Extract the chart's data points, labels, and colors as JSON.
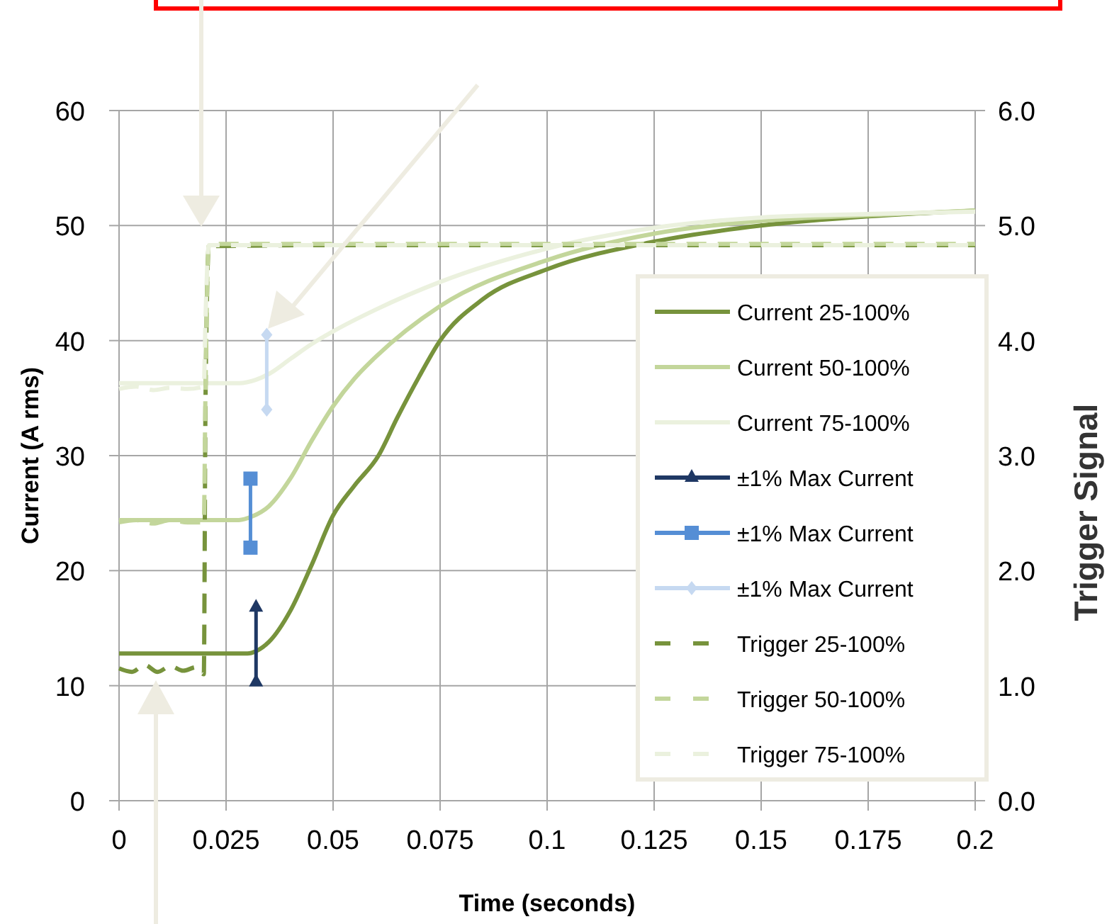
{
  "chart_data": {
    "type": "line",
    "xlabel": "Time (seconds)",
    "ylabel": "Current (A rms)",
    "y2label": "Trigger Signal",
    "xlim": [
      0,
      0.2
    ],
    "xticks": [
      0,
      0.025,
      0.05,
      0.075,
      0.1,
      0.125,
      0.15,
      0.175,
      0.2
    ],
    "ylim": [
      0,
      60
    ],
    "yticks": [
      0,
      10,
      20,
      30,
      40,
      50,
      60
    ],
    "y2lim": [
      0,
      6
    ],
    "y2ticks": [
      {
        "value": 0,
        "label": "0.0"
      },
      {
        "value": 1,
        "label": "1.0"
      },
      {
        "value": 2,
        "label": "2.0"
      },
      {
        "value": 3,
        "label": "3.0"
      },
      {
        "value": 4,
        "label": "4.0"
      },
      {
        "value": 5,
        "label": "5.0"
      },
      {
        "value": 6,
        "label": "6.0"
      }
    ],
    "grid": true,
    "legend": "bottom right",
    "series": [
      {
        "name": "Current 25-100%",
        "color": "#77933c",
        "line_style": "solid",
        "marker": "none",
        "x": [
          0,
          0.03,
          0.032,
          0.035,
          0.04,
          0.045,
          0.05,
          0.055,
          0.0606,
          0.065,
          0.07,
          0.075,
          0.085,
          0.1,
          0.125,
          0.15,
          0.175,
          0.2
        ],
        "values": [
          12.8,
          12.8,
          13,
          13.8,
          16.5,
          20.5,
          24.8,
          27.4,
          30,
          33.3,
          36.8,
          40,
          43.6,
          46.2,
          48.6,
          50,
          50.8,
          51.3
        ]
      },
      {
        "name": "Current 50-100%",
        "color": "#c3d69b",
        "line_style": "solid",
        "marker": "none",
        "x": [
          0,
          0.028,
          0.031,
          0.035,
          0.04,
          0.045,
          0.05,
          0.055,
          0.06,
          0.075,
          0.1,
          0.125,
          0.15,
          0.175,
          0.2
        ],
        "values": [
          24.4,
          24.4,
          24.7,
          25.6,
          28,
          31.3,
          34.3,
          36.7,
          38.6,
          43,
          47,
          49.3,
          50.4,
          50.9,
          51.3
        ]
      },
      {
        "name": "Current 75-100%",
        "color": "#ebf1de",
        "line_style": "solid",
        "marker": "none",
        "x": [
          0,
          0.028,
          0.032,
          0.035,
          0.04,
          0.045,
          0.05,
          0.06,
          0.075,
          0.1,
          0.125,
          0.15,
          0.175,
          0.2
        ],
        "values": [
          36.3,
          36.3,
          36.6,
          37.1,
          38.4,
          39.7,
          40.8,
          42.7,
          45.1,
          48,
          49.8,
          50.7,
          51,
          51.2
        ]
      },
      {
        "name": "±1% Max Current",
        "color": "#1f3864",
        "line_style": "solid",
        "marker": "triangle",
        "x": [
          0.032,
          0.032
        ],
        "values": [
          10.3,
          16.8
        ]
      },
      {
        "name": "±1% Max Current",
        "color": "#558ed5",
        "line_style": "solid",
        "marker": "square",
        "x": [
          0.0307,
          0.0307
        ],
        "values": [
          22,
          28
        ]
      },
      {
        "name": "±1% Max Current",
        "color": "#c6d9f1",
        "line_style": "solid",
        "marker": "diamond",
        "x": [
          0.0345,
          0.0345
        ],
        "values": [
          34,
          40.5
        ]
      },
      {
        "name": "Trigger 25-100%",
        "color": "#77933c",
        "line_style": "dashed",
        "marker": "none",
        "axis": "y2",
        "x": [
          0,
          0.003,
          0.006,
          0.009,
          0.012,
          0.015,
          0.018,
          0.0198,
          0.0202,
          0.021,
          0.05,
          0.1,
          0.15,
          0.2
        ],
        "values": [
          1.15,
          1.12,
          1.18,
          1.12,
          1.17,
          1.13,
          1.16,
          1.1,
          3.5,
          4.82,
          4.83,
          4.83,
          4.83,
          4.83
        ]
      },
      {
        "name": "Trigger 50-100%",
        "color": "#c3d69b",
        "line_style": "dashed",
        "marker": "none",
        "axis": "y2",
        "x": [
          0,
          0.004,
          0.008,
          0.012,
          0.016,
          0.0198,
          0.0202,
          0.021,
          0.05,
          0.1,
          0.15,
          0.2
        ],
        "values": [
          2.42,
          2.44,
          2.41,
          2.44,
          2.42,
          2.42,
          3.6,
          4.84,
          4.84,
          4.84,
          4.84,
          4.84
        ]
      },
      {
        "name": "Trigger 75-100%",
        "color": "#ebf1de",
        "line_style": "dashed",
        "marker": "none",
        "axis": "y2",
        "x": [
          0,
          0.004,
          0.008,
          0.012,
          0.016,
          0.0198,
          0.0202,
          0.021,
          0.05,
          0.1,
          0.15,
          0.2
        ],
        "values": [
          3.58,
          3.6,
          3.57,
          3.59,
          3.58,
          3.6,
          4.2,
          4.83,
          4.83,
          4.83,
          4.83,
          4.83
        ]
      }
    ]
  }
}
